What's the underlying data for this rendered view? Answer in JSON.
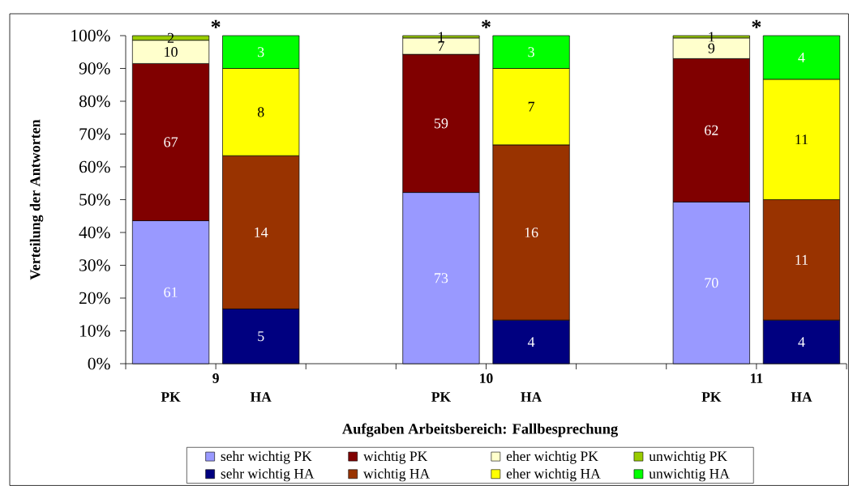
{
  "chart_data": {
    "type": "bar",
    "stacked": true,
    "xlabel": "Aufgaben Arbeitsbereich: Fallbesprechung",
    "ylabel": "Verteilung der Antworten",
    "categories": [
      "PK",
      "HA",
      null,
      "PK",
      "HA",
      null,
      "PK",
      "HA"
    ],
    "ylim": [
      0,
      100
    ],
    "yticks": [
      {
        "value": 0,
        "label": "0%"
      },
      {
        "value": 10,
        "label": "10%"
      },
      {
        "value": 20,
        "label": "20%"
      },
      {
        "value": 30,
        "label": "30%"
      },
      {
        "value": 40,
        "label": "40%"
      },
      {
        "value": 50,
        "label": "50%"
      },
      {
        "value": 60,
        "label": "60%"
      },
      {
        "value": 70,
        "label": "70%"
      },
      {
        "value": 80,
        "label": "80%"
      },
      {
        "value": 90,
        "label": "90%"
      },
      {
        "value": 100,
        "label": "100%"
      }
    ],
    "series": [
      {
        "name": "sehr wichtig PK",
        "color": "#9999ff",
        "values": [
          43.6,
          null,
          null,
          52.2,
          null,
          null,
          49.3,
          null
        ]
      },
      {
        "name": "wichtig PK",
        "color": "#800000",
        "values": [
          47.9,
          null,
          null,
          42.1,
          null,
          null,
          43.7,
          null
        ]
      },
      {
        "name": "eher wichtig PK",
        "color": "#ffffcc",
        "values": [
          7.1,
          null,
          null,
          5.0,
          null,
          null,
          6.3,
          null
        ]
      },
      {
        "name": "unwichtig PK",
        "color": "#99cc00",
        "values": [
          1.4,
          null,
          null,
          0.7,
          null,
          null,
          0.7,
          null
        ]
      },
      {
        "name": "sehr wichtig HA",
        "color": "#000080",
        "values": [
          null,
          16.7,
          null,
          null,
          13.3,
          null,
          null,
          13.3
        ]
      },
      {
        "name": "wichtig HA",
        "color": "#993300",
        "values": [
          null,
          46.7,
          null,
          null,
          53.4,
          null,
          null,
          36.7
        ]
      },
      {
        "name": "eher wichtig HA",
        "color": "#ffff00",
        "values": [
          null,
          26.6,
          null,
          null,
          23.3,
          null,
          null,
          36.7
        ]
      },
      {
        "name": "unwichtig HA",
        "color": "#00ff00",
        "values": [
          null,
          10.0,
          null,
          null,
          10.0,
          null,
          null,
          13.3
        ]
      }
    ],
    "legend": "bottom",
    "annotations": [
      "9",
      "10",
      "11",
      "*",
      "*",
      "*",
      "61",
      "67",
      "10",
      "2",
      "5",
      "14",
      "8",
      "3",
      "73",
      "59",
      "7",
      "1",
      "4",
      "16",
      "7",
      "3",
      "70",
      "62",
      "9",
      "1",
      "4",
      "11",
      "11",
      "4"
    ]
  }
}
